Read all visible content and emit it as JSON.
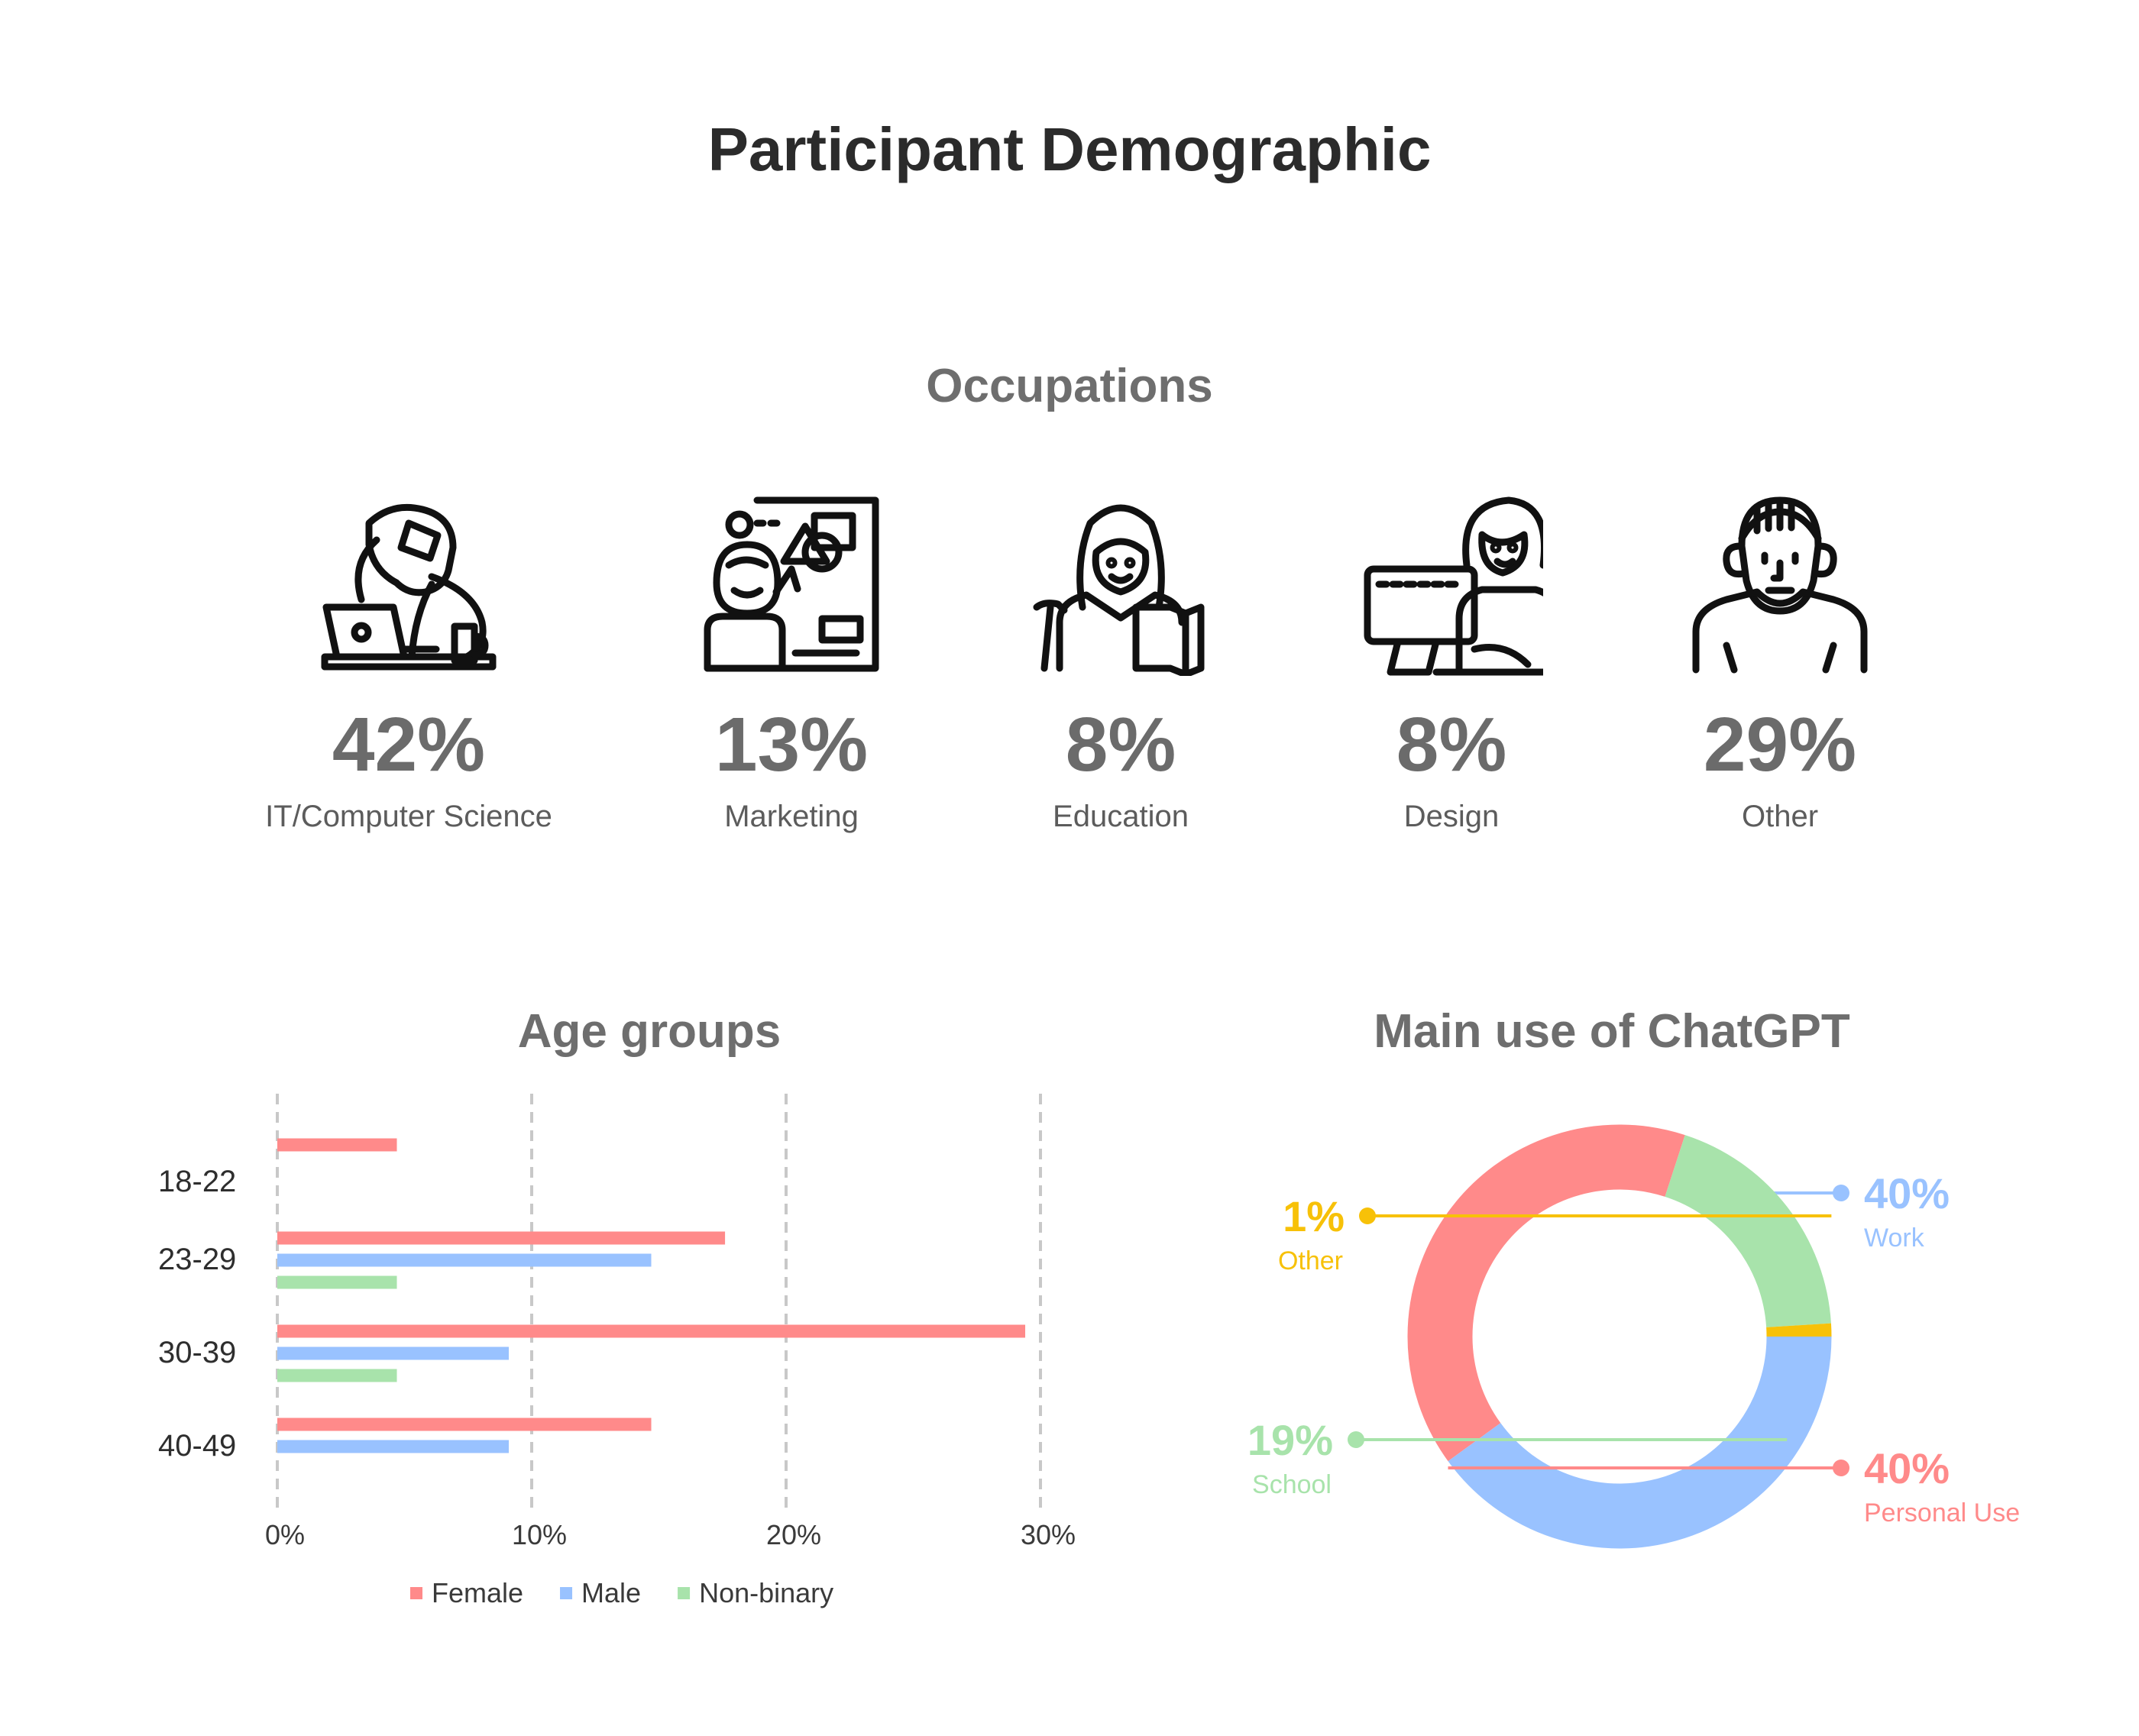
{
  "title": "Participant Demographic",
  "occupations": {
    "title": "Occupations",
    "items": [
      {
        "percent": "42%",
        "label": "IT/Computer Science",
        "icon": "programmer-at-laptop-icon"
      },
      {
        "percent": "13%",
        "label": "Marketing",
        "icon": "marketer-with-presentation-icon"
      },
      {
        "percent": "8%",
        "label": "Education",
        "icon": "teacher-with-book-icon"
      },
      {
        "percent": "8%",
        "label": "Design",
        "icon": "designer-at-computer-icon"
      },
      {
        "percent": "29%",
        "label": "Other",
        "icon": "person-icon"
      }
    ]
  },
  "colors": {
    "female": "#ff8a8a",
    "male": "#99c2ff",
    "nonbinary": "#a8e3ab",
    "other": "#f7c108"
  },
  "chart_data": [
    {
      "type": "bar",
      "orientation": "horizontal",
      "title": "Age groups",
      "categories": [
        "18-22",
        "23-29",
        "30-39",
        "40-49"
      ],
      "series": [
        {
          "name": "Female",
          "color": "#ff8a8a",
          "values": [
            4.7,
            17.6,
            29.4,
            14.7
          ]
        },
        {
          "name": "Male",
          "color": "#99c2ff",
          "values": [
            0,
            14.7,
            9.1,
            9.1
          ]
        },
        {
          "name": "Non-binary",
          "color": "#a8e3ab",
          "values": [
            0,
            4.7,
            4.7,
            0
          ]
        }
      ],
      "xlim": [
        0,
        30
      ],
      "xticks": [
        "0%",
        "10%",
        "20%",
        "30%"
      ],
      "grid": "vertical dashed",
      "legend": "bottom"
    },
    {
      "type": "pie",
      "style": "donut",
      "title": "Main use of ChatGPT",
      "slices": [
        {
          "name": "Work",
          "value": 40,
          "label": "40%",
          "color": "#99c2ff"
        },
        {
          "name": "Personal Use",
          "value": 40,
          "label": "40%",
          "color": "#ff8a8a"
        },
        {
          "name": "School",
          "value": 19,
          "label": "19%",
          "color": "#a8e3ab"
        },
        {
          "name": "Other",
          "value": 1,
          "label": "1%",
          "color": "#f7c108"
        }
      ]
    }
  ]
}
